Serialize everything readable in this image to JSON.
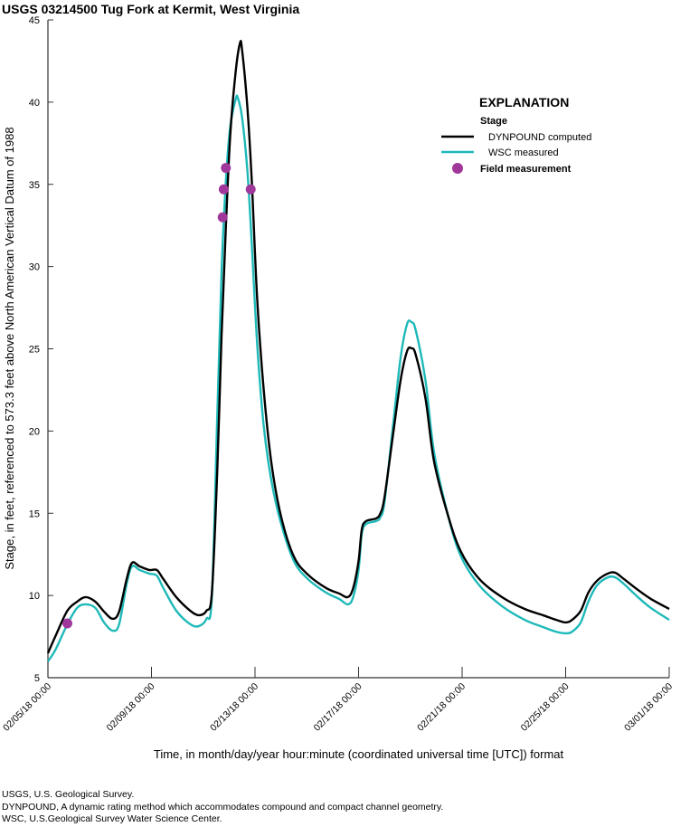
{
  "chart_data": {
    "type": "line",
    "title": "USGS 03214500 Tug Fork at Kermit, West Virginia",
    "xlabel": "Time, in month/day/year hour:minute (coordinated universal time [UTC]) format",
    "ylabel": "Stage, in feet, referenced to 573.3 feet above North American Vertical Datum of 1988",
    "xlim": [
      "02/05/18 00:00",
      "03/01/18 00:00"
    ],
    "ylim": [
      5,
      45
    ],
    "xticks": [
      "02/05/18 00:00",
      "02/09/18 00:00",
      "02/13/18 00:00",
      "02/17/18 00:00",
      "02/21/18 00:00",
      "02/25/18 00:00",
      "03/01/18 00:00"
    ],
    "yticks": [
      5,
      10,
      15,
      20,
      25,
      30,
      35,
      40,
      45
    ],
    "grid": false,
    "legend": {
      "placement": "top-right",
      "heading": "EXPLANATION",
      "group": "Stage"
    },
    "series": [
      {
        "name": "DYNPOUND computed",
        "color": "#000000",
        "x": [
          "02/05/18 00:00",
          "02/05/18 07:00",
          "02/05/18 18:00",
          "02/06/18 03:00",
          "02/06/18 11:00",
          "02/06/18 20:00",
          "02/07/18 04:00",
          "02/07/18 12:00",
          "02/07/18 18:00",
          "02/08/18 01:00",
          "02/08/18 06:00",
          "02/08/18 13:00",
          "02/08/18 22:00",
          "02/09/18 05:00",
          "02/09/18 11:00",
          "02/09/18 23:00",
          "02/10/18 12:00",
          "02/10/18 20:00",
          "02/11/18 03:00",
          "02/11/18 08:00",
          "02/11/18 13:00",
          "02/11/18 17:00",
          "02/11/18 21:00",
          "02/12/18 01:00",
          "02/12/18 06:00",
          "02/12/18 10:00",
          "02/12/18 12:00",
          "02/12/18 17:00",
          "02/12/18 21:00",
          "02/13/18 02:00",
          "02/13/18 08:00",
          "02/13/18 15:00",
          "02/14/18 00:00",
          "02/14/18 12:00",
          "02/15/18 01:00",
          "02/15/18 18:00",
          "02/16/18 06:00",
          "02/16/18 14:00",
          "02/16/18 19:00",
          "02/17/18 00:00",
          "02/17/18 03:00",
          "02/17/18 07:00",
          "02/17/18 16:00",
          "02/17/18 20:00",
          "02/18/18 00:00",
          "02/18/18 08:00",
          "02/18/18 15:00",
          "02/18/18 21:00",
          "02/19/18 01:00",
          "02/19/18 05:00",
          "02/19/18 14:00",
          "02/19/18 22:00",
          "02/20/18 11:00",
          "02/20/18 23:00",
          "02/21/18 16:00",
          "02/22/18 13:00",
          "02/23/18 10:00",
          "02/24/18 03:00",
          "02/24/18 15:00",
          "02/25/18 00:00",
          "02/25/18 06:00",
          "02/25/18 14:00",
          "02/25/18 21:00",
          "02/26/18 05:00",
          "02/26/18 15:00",
          "02/26/18 22:00",
          "02/27/18 06:00",
          "02/27/18 19:00",
          "02/28/18 07:00",
          "03/01/18 00:00"
        ],
        "y": [
          6.49,
          7.53,
          9.07,
          9.62,
          9.9,
          9.62,
          9.02,
          8.58,
          9.02,
          11.0,
          11.99,
          11.77,
          11.55,
          11.55,
          11.0,
          9.9,
          9.07,
          8.8,
          9.07,
          10.17,
          17.6,
          25.85,
          32.45,
          37.96,
          41.81,
          43.57,
          43.18,
          39.61,
          35.2,
          28.05,
          22.55,
          18.15,
          14.85,
          12.37,
          11.27,
          10.45,
          10.12,
          9.9,
          10.45,
          12.1,
          14.02,
          14.52,
          14.68,
          14.96,
          15.95,
          19.8,
          23.1,
          24.86,
          25.03,
          24.64,
          22.0,
          18.15,
          14.85,
          12.65,
          11.0,
          9.9,
          9.18,
          8.8,
          8.52,
          8.36,
          8.52,
          9.07,
          10.17,
          10.89,
          11.33,
          11.38,
          11.0,
          10.34,
          9.79,
          9.18
        ]
      },
      {
        "name": "WSC measured",
        "color": "#1fb9b9",
        "x": [
          "02/05/18 00:00",
          "02/05/18 07:00",
          "02/05/18 18:00",
          "02/06/18 03:00",
          "02/06/18 11:00",
          "02/06/18 20:00",
          "02/07/18 04:00",
          "02/07/18 12:00",
          "02/07/18 18:00",
          "02/08/18 01:00",
          "02/08/18 06:00",
          "02/08/18 13:00",
          "02/08/18 22:00",
          "02/09/18 05:00",
          "02/09/18 11:00",
          "02/09/18 23:00",
          "02/10/18 12:00",
          "02/10/18 20:00",
          "02/11/18 03:00",
          "02/11/18 08:00",
          "02/11/18 13:00",
          "02/11/18 17:00",
          "02/11/18 21:00",
          "02/12/18 01:00",
          "02/12/18 06:00",
          "02/12/18 08:00",
          "02/12/18 12:00",
          "02/12/18 17:00",
          "02/12/18 21:00",
          "02/13/18 02:00",
          "02/13/18 08:00",
          "02/13/18 15:00",
          "02/14/18 00:00",
          "02/14/18 12:00",
          "02/15/18 01:00",
          "02/15/18 18:00",
          "02/16/18 06:00",
          "02/16/18 14:00",
          "02/16/18 19:00",
          "02/17/18 00:00",
          "02/17/18 03:00",
          "02/17/18 07:00",
          "02/17/18 16:00",
          "02/17/18 20:00",
          "02/18/18 00:00",
          "02/18/18 08:00",
          "02/18/18 15:00",
          "02/18/18 21:00",
          "02/19/18 01:00",
          "02/19/18 05:00",
          "02/19/18 14:00",
          "02/19/18 22:00",
          "02/20/18 11:00",
          "02/20/18 23:00",
          "02/21/18 16:00",
          "02/22/18 13:00",
          "02/23/18 10:00",
          "02/24/18 03:00",
          "02/24/18 15:00",
          "02/25/18 00:00",
          "02/25/18 06:00",
          "02/25/18 14:00",
          "02/25/18 21:00",
          "02/26/18 05:00",
          "02/26/18 15:00",
          "02/26/18 22:00",
          "02/27/18 06:00",
          "02/27/18 19:00",
          "02/28/18 07:00",
          "03/01/18 00:00"
        ],
        "y": [
          5.99,
          6.7,
          8.25,
          9.24,
          9.46,
          9.24,
          8.36,
          7.86,
          8.25,
          10.7,
          11.77,
          11.55,
          11.33,
          11.2,
          10.45,
          9.07,
          8.25,
          8.14,
          8.58,
          9.9,
          20.9,
          29.7,
          35.2,
          38.5,
          40.16,
          40.27,
          39.06,
          35.76,
          31.35,
          25.3,
          20.35,
          17.05,
          14.41,
          12.1,
          11.0,
          10.17,
          9.79,
          9.46,
          9.9,
          11.55,
          13.75,
          14.35,
          14.52,
          14.74,
          15.67,
          20.35,
          24.48,
          26.51,
          26.62,
          26.13,
          23.1,
          18.7,
          14.85,
          12.37,
          10.61,
          9.35,
          8.52,
          8.08,
          7.8,
          7.7,
          7.8,
          8.36,
          9.62,
          10.61,
          11.1,
          11.1,
          10.7,
          9.9,
          9.24,
          8.52
        ]
      },
      {
        "name": "Field measurement",
        "type": "scatter",
        "color": "#a0379b",
        "x": [
          "02/05/18 18:00",
          "02/11/18 18:00",
          "02/11/18 19:00",
          "02/11/18 21:00",
          "02/12/18 20:00"
        ],
        "y": [
          8.3,
          33.0,
          34.7,
          36.0,
          34.7
        ]
      }
    ]
  },
  "notes": [
    "USGS, U.S. Geological Survey.",
    "DYNPOUND, A dynamic rating method which accommodates compound and compact channel geometry.",
    "WSC, U.S.Geological Survey Water Science Center."
  ]
}
